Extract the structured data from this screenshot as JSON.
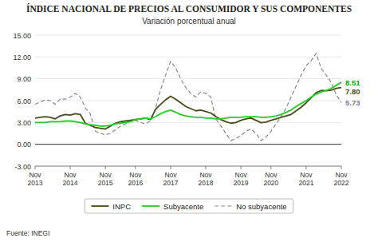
{
  "chart_data": {
    "type": "line",
    "title": "ÍNDICE NACIONAL DE PRECIOS AL CONSUMIDOR Y SUS COMPONENTES",
    "subtitle": "Variación porcentual anual",
    "footer": "Fuente: INEGI",
    "categories": [
      "Nov\n2013",
      null,
      null,
      null,
      null,
      null,
      null,
      "Nov\n2014",
      null,
      null,
      null,
      null,
      null,
      null,
      "Nov\n2015",
      null,
      null,
      null,
      null,
      null,
      "Nov\n2016",
      null,
      null,
      null,
      null,
      null,
      null,
      "Nov\n2017",
      null,
      null,
      null,
      null,
      null,
      null,
      "Nov\n2018",
      null,
      null,
      null,
      null,
      null,
      null,
      "Nov\n2019",
      null,
      null,
      null,
      null,
      null,
      "Nov\n2020",
      null,
      null,
      null,
      null,
      null,
      null,
      "Nov\n2021",
      null,
      null,
      null,
      null,
      null,
      null,
      "Nov\n2022"
    ],
    "series": [
      {
        "name": "INPC",
        "color": "#4a4a1a",
        "line_style": "solid",
        "values": [
          3.6,
          3.7,
          3.8,
          3.7,
          3.5,
          3.9,
          4.1,
          4.0,
          4.2,
          4.1,
          2.9,
          2.6,
          2.3,
          2.2,
          2.1,
          2.5,
          2.9,
          3.1,
          3.2,
          3.3,
          3.4,
          3.5,
          3.6,
          3.4,
          4.8,
          5.5,
          6.1,
          6.6,
          6.2,
          5.7,
          5.2,
          4.9,
          4.6,
          4.7,
          4.5,
          4.3,
          3.8,
          3.4,
          3.1,
          2.9,
          3.0,
          3.3,
          3.5,
          3.6,
          3.3,
          2.97,
          3.06,
          3.3,
          3.5,
          3.7,
          3.9,
          4.1,
          4.6,
          5.1,
          5.7,
          6.4,
          7.1,
          7.4,
          7.36,
          7.45,
          7.68,
          7.8
        ]
      },
      {
        "name": "Subyacente",
        "color": "#22cc22",
        "line_style": "solid",
        "values": [
          3.0,
          3.0,
          3.0,
          3.1,
          3.1,
          3.1,
          3.2,
          3.2,
          3.1,
          3.0,
          2.8,
          2.7,
          2.6,
          2.5,
          2.5,
          2.6,
          2.8,
          2.9,
          3.0,
          3.1,
          3.4,
          3.5,
          3.6,
          3.5,
          3.8,
          4.2,
          4.5,
          4.7,
          4.4,
          4.1,
          3.9,
          3.8,
          3.7,
          3.7,
          3.6,
          3.6,
          3.5,
          3.5,
          3.6,
          3.7,
          3.7,
          3.7,
          3.8,
          3.8,
          3.8,
          3.7,
          3.7,
          3.8,
          3.9,
          4.1,
          4.4,
          4.7,
          5.2,
          5.6,
          6.0,
          6.5,
          6.9,
          7.2,
          7.4,
          7.7,
          8.1,
          8.51
        ]
      },
      {
        "name": "No subyacente",
        "color": "#888888",
        "line_style": "dashed",
        "values": [
          5.5,
          5.8,
          6.1,
          6.0,
          5.5,
          6.2,
          6.2,
          6.5,
          7.0,
          6.5,
          5.0,
          4.2,
          1.8,
          1.5,
          1.3,
          1.5,
          2.0,
          2.5,
          2.8,
          3.2,
          3.3,
          3.0,
          2.8,
          3.2,
          5.0,
          7.5,
          9.5,
          11.4,
          10.5,
          9.0,
          7.8,
          7.0,
          6.5,
          7.2,
          7.0,
          6.5,
          3.5,
          2.5,
          1.5,
          0.5,
          0.8,
          1.2,
          1.8,
          2.1,
          1.5,
          0.5,
          1.0,
          1.8,
          2.8,
          3.8,
          5.0,
          6.5,
          8.0,
          9.5,
          10.8,
          11.5,
          12.5,
          10.4,
          9.5,
          8.5,
          6.8,
          5.73
        ]
      }
    ],
    "annotations": [
      {
        "text": "8.51",
        "value": 8.51,
        "color": "#00aa00"
      },
      {
        "text": "7.80",
        "value": 7.8,
        "color": "#4a4a1a"
      },
      {
        "text": "5.73",
        "value": 5.73,
        "color": "#7a7a9a"
      }
    ],
    "ylim": [
      -3.0,
      15.0
    ],
    "yticks": [
      {
        "value": -3.0,
        "label": "-3.00"
      },
      {
        "value": 0.0,
        "label": "0.00"
      },
      {
        "value": 3.0,
        "label": "3.00"
      },
      {
        "value": 6.0,
        "label": "6.00"
      },
      {
        "value": 9.0,
        "label": "9.00"
      },
      {
        "value": 12.0,
        "label": "12.00"
      },
      {
        "value": 15.0,
        "label": "15.00"
      }
    ],
    "grid": true,
    "legend": "bottom"
  }
}
